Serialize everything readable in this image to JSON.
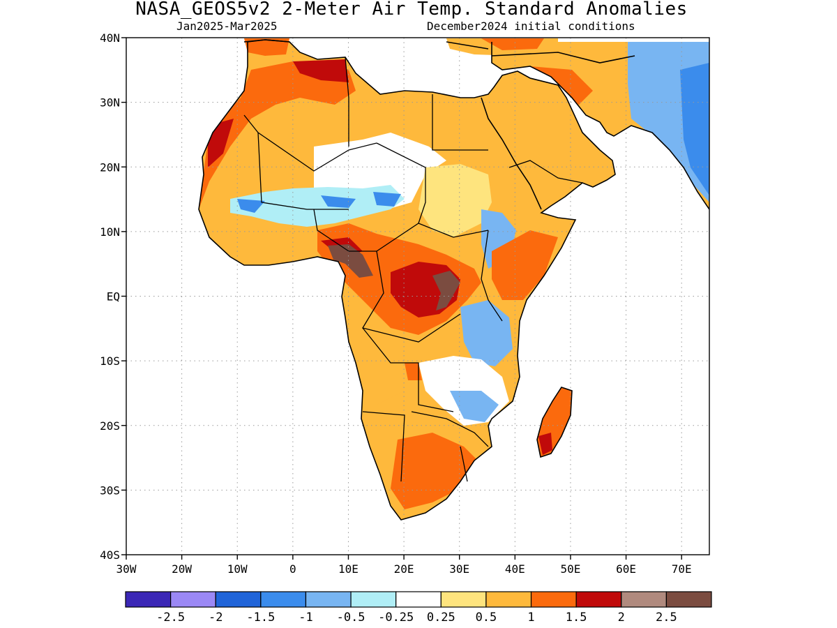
{
  "title": "NASA_GEOS5v2 2-Meter Air Temp. Standard Anomalies",
  "subtitle_left": "Jan2025-Mar2025",
  "subtitle_right": "December2024 initial conditions",
  "map": {
    "lat_labels": [
      "40N",
      "30N",
      "20N",
      "10N",
      "EQ",
      "10S",
      "20S",
      "30S",
      "40S"
    ],
    "lon_labels": [
      "30W",
      "20W",
      "10W",
      "0",
      "10E",
      "20E",
      "30E",
      "40E",
      "50E",
      "60E",
      "70E"
    ],
    "lat_range": [
      -40,
      40
    ],
    "lon_range": [
      -30,
      75
    ],
    "grid": "dotted"
  },
  "colorbar": {
    "colors": [
      "#3b27b6",
      "#9b88f5",
      "#2064d9",
      "#3b8cec",
      "#78b5f2",
      "#b0eef6",
      "#ffffff",
      "#fee47e",
      "#feb93c",
      "#fb6a0d",
      "#c00a0a",
      "#b08a7e",
      "#7b4c40"
    ],
    "labels": [
      "-2.5",
      "-2",
      "-1.5",
      "-1",
      "-0.5",
      "-0.25",
      "0.25",
      "0.5",
      "1",
      "1.5",
      "2",
      "2.5"
    ]
  },
  "regions": [
    {
      "name": "north-africa",
      "anomaly": "0.5 to 1"
    },
    {
      "name": "northwest-africa-coast",
      "anomaly": "1 to 1.5"
    },
    {
      "name": "west-africa-sahel",
      "anomaly": "-1 to -0.25"
    },
    {
      "name": "nigeria-cameroon",
      "anomaly": "above 2.5"
    },
    {
      "name": "central-africa-drc",
      "anomaly": "2 to 2.5"
    },
    {
      "name": "east-africa-kenya",
      "anomaly": "-1 to -0.25"
    },
    {
      "name": "ethiopia-somalia",
      "anomaly": "1 to 1.5"
    },
    {
      "name": "southern-africa",
      "anomaly": "0.5 to 1.5"
    },
    {
      "name": "madagascar",
      "anomaly": "1 to 2"
    },
    {
      "name": "iran-central-asia",
      "anomaly": "-1.5 to -0.25"
    },
    {
      "name": "arabian-peninsula",
      "anomaly": "0.25 to 1"
    }
  ]
}
